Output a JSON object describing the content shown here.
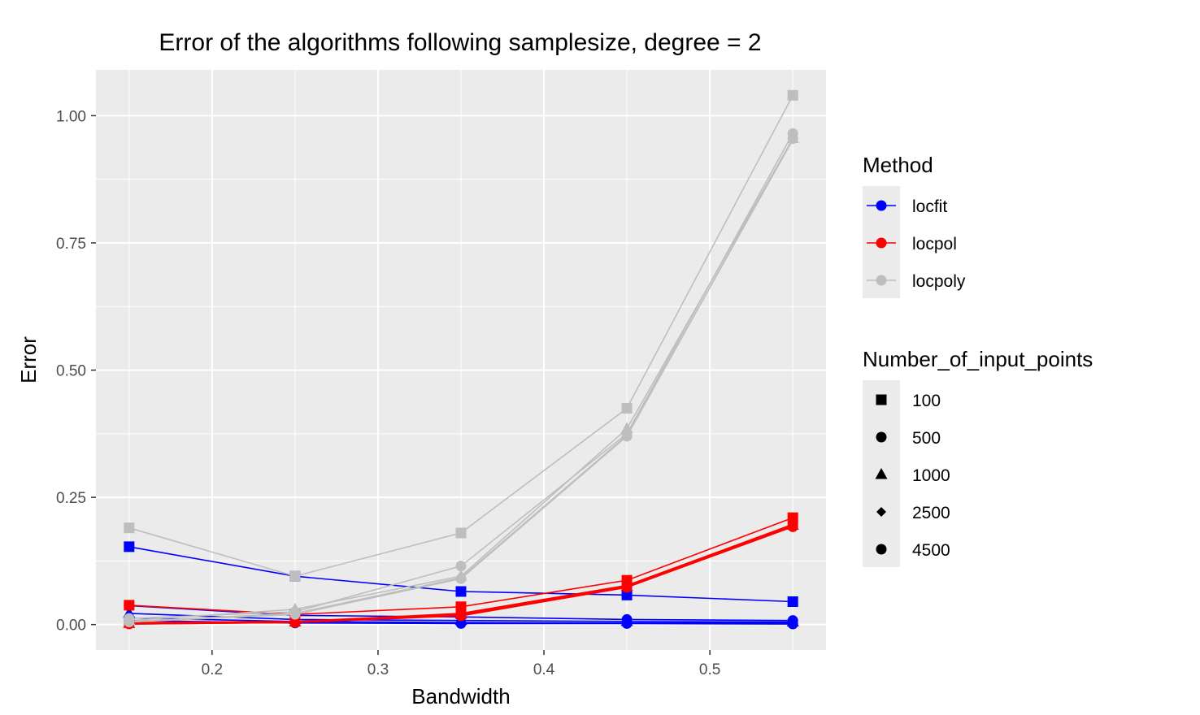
{
  "chart_data": {
    "type": "line",
    "title": "Error of the algorithms following samplesize, degree = 2",
    "xlabel": "Bandwidth",
    "ylabel": "Error",
    "xlim": [
      0.13,
      0.57
    ],
    "ylim": [
      -0.05,
      1.09
    ],
    "x_ticks": [
      0.2,
      0.3,
      0.4,
      0.5
    ],
    "x_tick_labels": [
      "0.2",
      "0.3",
      "0.4",
      "0.5"
    ],
    "y_ticks": [
      0.0,
      0.25,
      0.5,
      0.75,
      1.0
    ],
    "y_tick_labels": [
      "0.00",
      "0.25",
      "0.50",
      "0.75",
      "1.00"
    ],
    "grid": true,
    "x": [
      0.15,
      0.25,
      0.35,
      0.45,
      0.55
    ],
    "colors": {
      "locfit": "#0000ff",
      "locpol": "#ff0000",
      "locpoly": "#bebebe"
    },
    "legend_method": {
      "title": "Method",
      "entries": [
        "locfit",
        "locpol",
        "locpoly"
      ]
    },
    "legend_points": {
      "title": "Number_of_input_points",
      "entries": [
        {
          "label": "100",
          "shape": "square"
        },
        {
          "label": "500",
          "shape": "circle"
        },
        {
          "label": "1000",
          "shape": "triangle"
        },
        {
          "label": "2500",
          "shape": "diamond"
        },
        {
          "label": "4500",
          "shape": "circle"
        }
      ]
    },
    "series": [
      {
        "method": "locfit",
        "points": "100",
        "values": [
          0.153,
          0.095,
          0.065,
          0.058,
          0.045
        ]
      },
      {
        "method": "locfit",
        "points": "500",
        "values": [
          0.037,
          0.018,
          0.015,
          0.01,
          0.008
        ]
      },
      {
        "method": "locfit",
        "points": "1000",
        "values": [
          0.022,
          0.01,
          0.008,
          0.006,
          0.005
        ]
      },
      {
        "method": "locfit",
        "points": "2500",
        "values": [
          0.013,
          0.006,
          0.004,
          0.003,
          0.003
        ]
      },
      {
        "method": "locfit",
        "points": "4500",
        "values": [
          0.008,
          0.003,
          0.002,
          0.002,
          0.001
        ]
      },
      {
        "method": "locpol",
        "points": "100",
        "values": [
          0.038,
          0.02,
          0.035,
          0.087,
          0.21
        ]
      },
      {
        "method": "locpol",
        "points": "500",
        "values": [
          0.004,
          0.006,
          0.022,
          0.077,
          0.197
        ]
      },
      {
        "method": "locpol",
        "points": "1000",
        "values": [
          0.002,
          0.005,
          0.02,
          0.075,
          0.195
        ]
      },
      {
        "method": "locpol",
        "points": "2500",
        "values": [
          0.001,
          0.004,
          0.018,
          0.074,
          0.193
        ]
      },
      {
        "method": "locpol",
        "points": "4500",
        "values": [
          0.001,
          0.004,
          0.017,
          0.073,
          0.192
        ]
      },
      {
        "method": "locpoly",
        "points": "100",
        "values": [
          0.19,
          0.095,
          0.18,
          0.425,
          1.04
        ]
      },
      {
        "method": "locpoly",
        "points": "500",
        "values": [
          0.012,
          0.025,
          0.115,
          0.375,
          0.965
        ]
      },
      {
        "method": "locpoly",
        "points": "1000",
        "values": [
          0.008,
          0.03,
          0.095,
          0.385,
          0.955
        ]
      },
      {
        "method": "locpoly",
        "points": "2500",
        "values": [
          0.006,
          0.022,
          0.092,
          0.372,
          0.953
        ]
      },
      {
        "method": "locpoly",
        "points": "4500",
        "values": [
          0.005,
          0.02,
          0.09,
          0.37,
          0.955
        ]
      }
    ]
  }
}
